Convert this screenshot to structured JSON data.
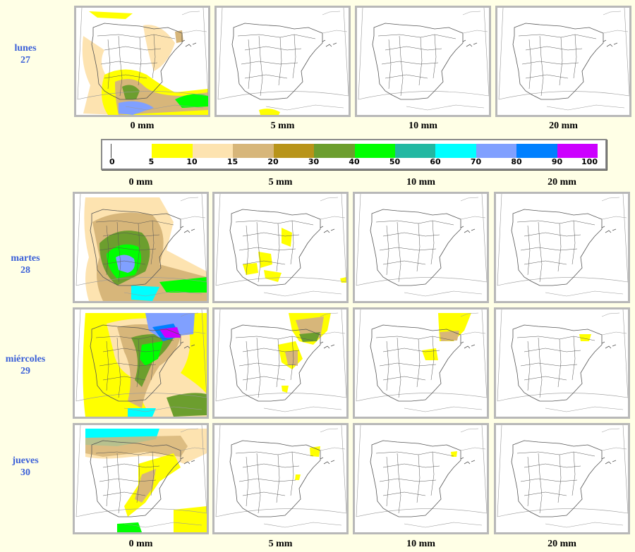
{
  "days": [
    {
      "name": "lunes",
      "num": "27"
    },
    {
      "name": "martes",
      "num": "28"
    },
    {
      "name": "miércoles",
      "num": "29"
    },
    {
      "name": "jueves",
      "num": "30"
    }
  ],
  "thresholds": [
    "0 mm",
    "5 mm",
    "10 mm",
    "20 mm"
  ],
  "legend": {
    "ticks": [
      "0",
      "5",
      "10",
      "15",
      "20",
      "30",
      "40",
      "50",
      "60",
      "70",
      "80",
      "90",
      "100"
    ],
    "colors": [
      "#ffffff",
      "#ffff00",
      "#fde3b0",
      "#d7b67a",
      "#b8941a",
      "#6c9e2e",
      "#00ff00",
      "#22b8a2",
      "#00ffff",
      "#80a0ff",
      "#0080ff",
      "#cc00ff"
    ]
  },
  "map_colors": {
    "border": "#b8b8b8",
    "coast": "#555555",
    "frame": "#999999"
  }
}
